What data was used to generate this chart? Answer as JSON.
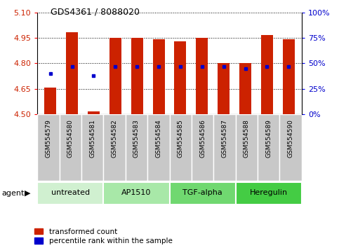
{
  "title": "GDS4361 / 8088020",
  "samples": [
    "GSM554579",
    "GSM554580",
    "GSM554581",
    "GSM554582",
    "GSM554583",
    "GSM554584",
    "GSM554585",
    "GSM554586",
    "GSM554587",
    "GSM554588",
    "GSM554589",
    "GSM554590"
  ],
  "red_values": [
    4.655,
    4.985,
    4.515,
    4.95,
    4.948,
    4.943,
    4.93,
    4.951,
    4.8,
    4.8,
    4.965,
    4.94
  ],
  "blue_percentiles": [
    40,
    47,
    38,
    47,
    47,
    47,
    47,
    47,
    47,
    45,
    47,
    47
  ],
  "ymin": 4.5,
  "ymax": 5.1,
  "yticks": [
    4.5,
    4.65,
    4.8,
    4.95,
    5.1
  ],
  "right_yticks": [
    0,
    25,
    50,
    75,
    100
  ],
  "agent_groups": [
    {
      "label": "untreated",
      "start": 0,
      "end": 3,
      "color": "#d0f0d0"
    },
    {
      "label": "AP1510",
      "start": 3,
      "end": 6,
      "color": "#a8e8a8"
    },
    {
      "label": "TGF-alpha",
      "start": 6,
      "end": 9,
      "color": "#70d870"
    },
    {
      "label": "Heregulin",
      "start": 9,
      "end": 12,
      "color": "#44cc44"
    }
  ],
  "bar_color": "#cc2200",
  "dot_color": "#0000cc",
  "grid_color": "#000000",
  "bg_color": "#ffffff",
  "tick_label_color_left": "#cc2200",
  "tick_label_color_right": "#0000cc",
  "legend_red": "transformed count",
  "legend_blue": "percentile rank within the sample",
  "agent_label": "agent",
  "bar_width": 0.55,
  "sample_bg_color": "#c8c8c8"
}
